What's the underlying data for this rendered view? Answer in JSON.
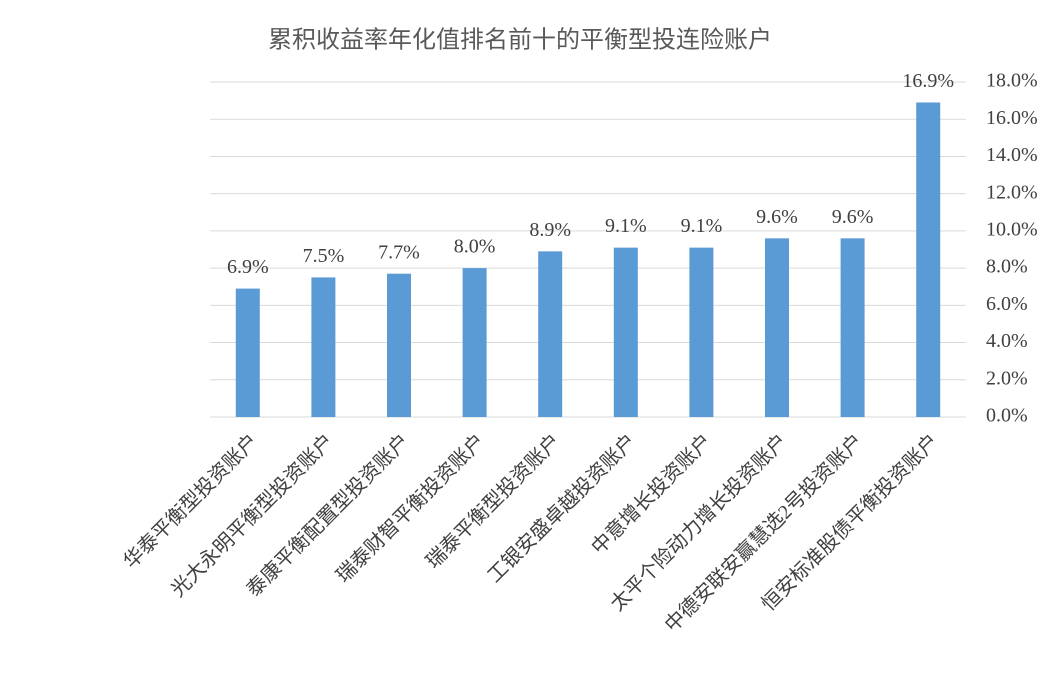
{
  "chart_data": {
    "type": "bar",
    "title": "累积收益率年化值排名前十的平衡型投连险账户",
    "categories": [
      "华泰平衡型投资账户",
      "光大永明平衡型投资账户",
      "泰康平衡配置型投资账户",
      "瑞泰财智平衡投资账户",
      "瑞泰平衡型投资账户",
      "工银安盛卓越投资账户",
      "中意增长投资账户",
      "太平个险动力增长投资账户",
      "中德安联安赢慧选2号投资账户",
      "恒安标准股债平衡投资账户"
    ],
    "values": [
      6.9,
      7.5,
      7.7,
      8.0,
      8.9,
      9.1,
      9.1,
      9.6,
      9.6,
      16.9
    ],
    "value_labels": [
      "6.9%",
      "7.5%",
      "7.7%",
      "8.0%",
      "8.9%",
      "9.1%",
      "9.1%",
      "9.6%",
      "9.6%",
      "16.9%"
    ],
    "color": "#5b9bd5",
    "ylim": [
      0,
      18
    ],
    "yticks": [
      {
        "value": 0,
        "label": "0.0%"
      },
      {
        "value": 2,
        "label": "2.0%"
      },
      {
        "value": 4,
        "label": "4.0%"
      },
      {
        "value": 6,
        "label": "6.0%"
      },
      {
        "value": 8,
        "label": "8.0%"
      },
      {
        "value": 10,
        "label": "10.0%"
      },
      {
        "value": 12,
        "label": "12.0%"
      },
      {
        "value": 14,
        "label": "14.0%"
      },
      {
        "value": 16,
        "label": "16.0%"
      },
      {
        "value": 18,
        "label": "18.0%"
      }
    ],
    "grid": true,
    "y_axis_side": "right"
  }
}
